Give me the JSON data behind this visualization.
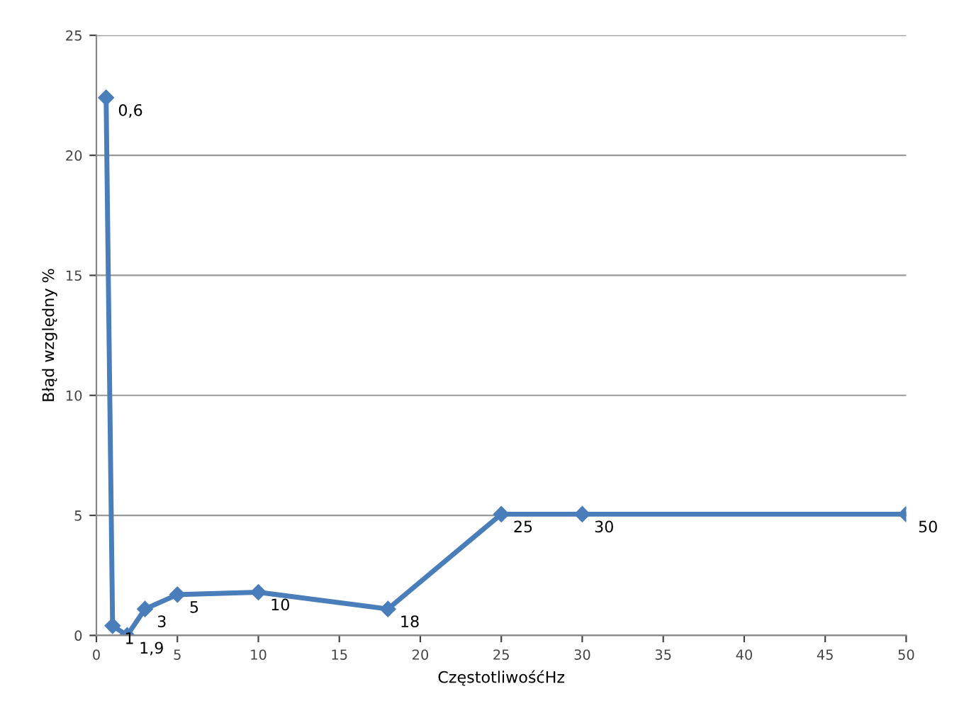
{
  "chart_data": {
    "type": "line",
    "xlabel": "CzęstotliwośćHz",
    "ylabel": "Błąd względny %",
    "x": [
      0.6,
      1,
      1.9,
      3,
      5,
      10,
      18,
      25,
      30,
      50
    ],
    "series": [
      {
        "color": "#4a7ebb",
        "values": [
          22.4,
          0.4,
          0.0,
          1.1,
          1.7,
          1.8,
          1.1,
          5.05,
          5.05,
          5.05
        ]
      }
    ],
    "annotations": [
      {
        "text": "0,6",
        "x": 0.6,
        "y": 22.4
      },
      {
        "text": "1",
        "x": 1,
        "y": 0.4
      },
      {
        "text": "1,9",
        "x": 1.9,
        "y": 0.0
      },
      {
        "text": "3",
        "x": 3,
        "y": 1.1
      },
      {
        "text": "5",
        "x": 5,
        "y": 1.7
      },
      {
        "text": "10",
        "x": 10,
        "y": 1.8
      },
      {
        "text": "18",
        "x": 18,
        "y": 1.1
      },
      {
        "text": "25",
        "x": 25,
        "y": 5.05
      },
      {
        "text": "30",
        "x": 30,
        "y": 5.05
      },
      {
        "text": "50",
        "x": 50,
        "y": 5.05
      }
    ],
    "xlim": [
      0,
      50
    ],
    "ylim": [
      0,
      25
    ],
    "xticks": [
      0,
      5,
      10,
      15,
      20,
      25,
      30,
      35,
      40,
      45,
      50
    ],
    "yticks": [
      0,
      5,
      10,
      15,
      20,
      25
    ],
    "grid": "y",
    "marker": "diamond",
    "line_style": "solid"
  }
}
